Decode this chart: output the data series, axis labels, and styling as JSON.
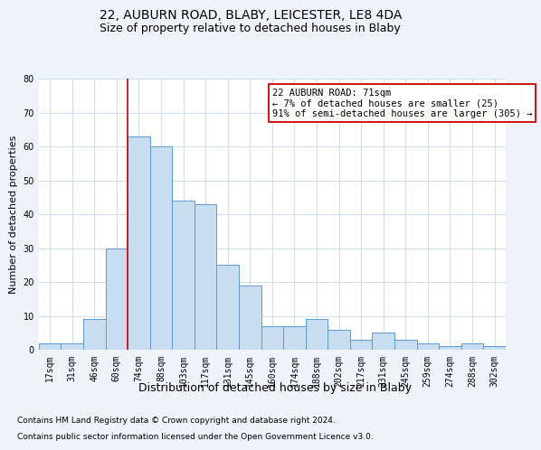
{
  "title1": "22, AUBURN ROAD, BLABY, LEICESTER, LE8 4DA",
  "title2": "Size of property relative to detached houses in Blaby",
  "xlabel": "Distribution of detached houses by size in Blaby",
  "ylabel": "Number of detached properties",
  "bar_labels": [
    "17sqm",
    "31sqm",
    "46sqm",
    "60sqm",
    "74sqm",
    "88sqm",
    "103sqm",
    "117sqm",
    "131sqm",
    "145sqm",
    "160sqm",
    "174sqm",
    "188sqm",
    "202sqm",
    "217sqm",
    "231sqm",
    "245sqm",
    "259sqm",
    "274sqm",
    "288sqm",
    "302sqm"
  ],
  "bar_values": [
    2,
    2,
    9,
    30,
    63,
    60,
    44,
    43,
    25,
    19,
    7,
    7,
    9,
    6,
    3,
    5,
    3,
    2,
    1,
    2,
    1
  ],
  "bar_color": "#c9ddf0",
  "bar_edge_color": "#5b9bd5",
  "vline_x": 3.5,
  "vline_color": "#cc0000",
  "annotation_text": "22 AUBURN ROAD: 71sqm\n← 7% of detached houses are smaller (25)\n91% of semi-detached houses are larger (305) →",
  "annotation_box_color": "#ffffff",
  "annotation_box_edge": "#cc0000",
  "ylim": [
    0,
    80
  ],
  "yticks": [
    0,
    10,
    20,
    30,
    40,
    50,
    60,
    70,
    80
  ],
  "footnote1": "Contains HM Land Registry data © Crown copyright and database right 2024.",
  "footnote2": "Contains public sector information licensed under the Open Government Licence v3.0.",
  "background_color": "#eef3f9",
  "plot_bg_color": "#ffffff",
  "grid_color": "#c8d8e8",
  "title1_fontsize": 10,
  "title2_fontsize": 9,
  "xlabel_fontsize": 9,
  "ylabel_fontsize": 8,
  "tick_fontsize": 7,
  "annotation_fontsize": 7.5,
  "footnote_fontsize": 6.5
}
